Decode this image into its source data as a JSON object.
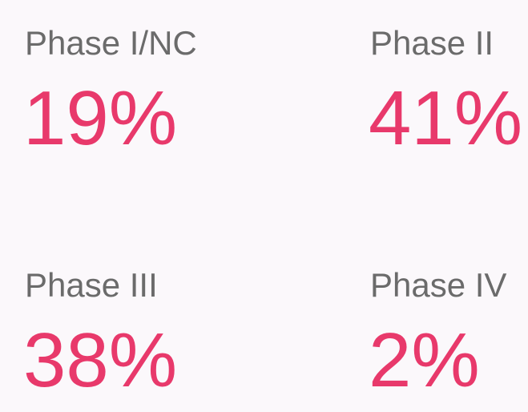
{
  "stats": [
    {
      "label": "Phase I/NC",
      "value": "19%"
    },
    {
      "label": "Phase II",
      "value": "41%"
    },
    {
      "label": "Phase III",
      "value": "38%"
    },
    {
      "label": "Phase IV",
      "value": "2%"
    }
  ]
}
